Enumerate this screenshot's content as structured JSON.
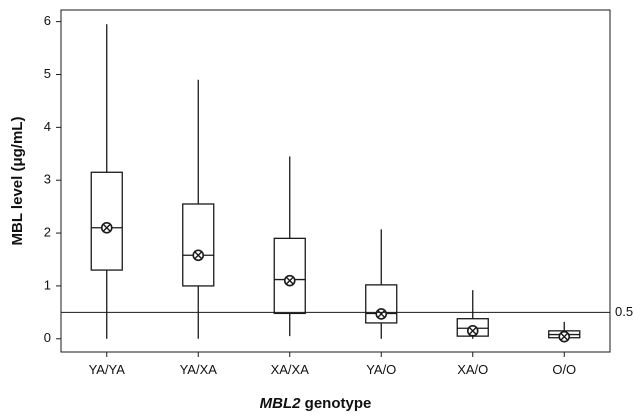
{
  "chart_data": {
    "type": "box",
    "title": "",
    "xlabel_prefix": "MBL2",
    "xlabel_suffix": " genotype",
    "ylabel": "MBL level (μg/mL)",
    "ylim": [
      0,
      6
    ],
    "yticks": [
      0,
      1,
      2,
      3,
      4,
      5,
      6
    ],
    "categories": [
      "YA/YA",
      "YA/XA",
      "XA/XA",
      "YA/O",
      "XA/O",
      "O/O"
    ],
    "boxes": [
      {
        "category": "YA/YA",
        "min": 0.0,
        "q1": 1.3,
        "median": 2.1,
        "q3": 3.15,
        "max": 5.95,
        "mean": 2.1
      },
      {
        "category": "YA/XA",
        "min": 0.0,
        "q1": 1.0,
        "median": 1.58,
        "q3": 2.55,
        "max": 4.9,
        "mean": 1.58
      },
      {
        "category": "XA/XA",
        "min": 0.05,
        "q1": 0.48,
        "median": 1.12,
        "q3": 1.9,
        "max": 3.45,
        "mean": 1.1
      },
      {
        "category": "YA/O",
        "min": 0.0,
        "q1": 0.3,
        "median": 0.48,
        "q3": 1.02,
        "max": 2.07,
        "mean": 0.47
      },
      {
        "category": "XA/O",
        "min": 0.0,
        "q1": 0.05,
        "median": 0.2,
        "q3": 0.38,
        "max": 0.92,
        "mean": 0.15
      },
      {
        "category": "O/O",
        "min": 0.0,
        "q1": 0.02,
        "median": 0.08,
        "q3": 0.15,
        "max": 0.32,
        "mean": 0.04
      }
    ],
    "reference_line": {
      "value": 0.5,
      "label": "0.5"
    },
    "grid": false,
    "legend": "none",
    "colors": {
      "line": "#1a1a1a",
      "background": "#ffffff"
    }
  }
}
